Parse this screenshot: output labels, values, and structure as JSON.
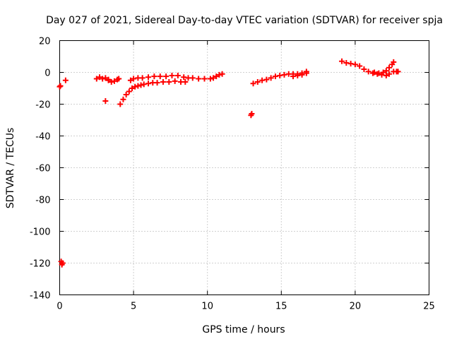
{
  "chart_data": {
    "type": "scatter",
    "title": "Day 027 of 2021, Sidereal Day-to-day VTEC variation (SDTVAR) for receiver spja",
    "xlabel": "GPS time / hours",
    "ylabel": "SDTVAR / TECUs",
    "xlim": [
      0,
      25
    ],
    "ylim": [
      -140,
      20
    ],
    "xticks": [
      "0",
      "5",
      "10",
      "15",
      "20",
      "25"
    ],
    "yticks": [
      "20",
      "0",
      "-20",
      "-40",
      "-60",
      "-80",
      "-100",
      "-120",
      "-140"
    ],
    "grid": true,
    "marker": "plus",
    "color": "#ff0000",
    "series": [
      {
        "points": [
          [
            0.0,
            -9
          ],
          [
            0.05,
            -8.5
          ],
          [
            0.4,
            -5
          ],
          [
            0.1,
            -119
          ],
          [
            0.15,
            -121
          ],
          [
            0.2,
            -120
          ],
          [
            2.5,
            -4
          ],
          [
            2.7,
            -3
          ],
          [
            2.9,
            -4
          ],
          [
            3.1,
            -3.5
          ],
          [
            3.3,
            -4.5
          ],
          [
            3.1,
            -18
          ],
          [
            3.3,
            -5
          ],
          [
            3.5,
            -6
          ],
          [
            3.7,
            -5.5
          ],
          [
            3.9,
            -4.5
          ],
          [
            4.0,
            -4
          ],
          [
            4.1,
            -20
          ],
          [
            4.3,
            -17
          ],
          [
            4.5,
            -14
          ],
          [
            4.7,
            -12
          ],
          [
            4.9,
            -10
          ],
          [
            5.1,
            -9
          ],
          [
            5.3,
            -8.5
          ],
          [
            5.5,
            -8
          ],
          [
            5.7,
            -7.5
          ],
          [
            6.0,
            -7
          ],
          [
            6.3,
            -6.5
          ],
          [
            6.6,
            -6.5
          ],
          [
            7.0,
            -6
          ],
          [
            7.4,
            -6
          ],
          [
            7.8,
            -5.5
          ],
          [
            8.2,
            -6
          ],
          [
            8.5,
            -6
          ],
          [
            4.8,
            -5
          ],
          [
            5.0,
            -4
          ],
          [
            5.3,
            -3.5
          ],
          [
            5.6,
            -3.5
          ],
          [
            6.0,
            -3
          ],
          [
            6.4,
            -2.5
          ],
          [
            6.8,
            -2.5
          ],
          [
            7.2,
            -2.5
          ],
          [
            7.6,
            -2
          ],
          [
            8.0,
            -2
          ],
          [
            8.4,
            -3
          ],
          [
            8.7,
            -3.5
          ],
          [
            9.0,
            -3.5
          ],
          [
            9.4,
            -4
          ],
          [
            9.8,
            -4
          ],
          [
            10.2,
            -4
          ],
          [
            10.4,
            -3.5
          ],
          [
            10.6,
            -2.5
          ],
          [
            10.8,
            -1.5
          ],
          [
            11.0,
            -1
          ],
          [
            12.95,
            -27
          ],
          [
            13.0,
            -26
          ],
          [
            13.1,
            -7
          ],
          [
            13.4,
            -6
          ],
          [
            13.7,
            -5
          ],
          [
            14.0,
            -4.5
          ],
          [
            14.3,
            -3.5
          ],
          [
            14.6,
            -2.5
          ],
          [
            14.9,
            -2
          ],
          [
            15.2,
            -1.5
          ],
          [
            15.5,
            -1
          ],
          [
            15.8,
            -1
          ],
          [
            16.1,
            -1
          ],
          [
            16.4,
            -0.5
          ],
          [
            16.7,
            -0.5
          ],
          [
            15.8,
            -2.5
          ],
          [
            16.1,
            -2
          ],
          [
            16.4,
            -1.5
          ],
          [
            16.7,
            0.5
          ],
          [
            19.1,
            7
          ],
          [
            19.4,
            6
          ],
          [
            19.7,
            5.5
          ],
          [
            20.0,
            5
          ],
          [
            20.3,
            4
          ],
          [
            20.6,
            2
          ],
          [
            20.9,
            0.5
          ],
          [
            21.2,
            -0.5
          ],
          [
            21.5,
            -1
          ],
          [
            21.8,
            -1.5
          ],
          [
            22.1,
            -2
          ],
          [
            22.3,
            -1
          ],
          [
            21.3,
            0
          ],
          [
            21.6,
            -0.5
          ],
          [
            21.9,
            0
          ],
          [
            22.1,
            1
          ],
          [
            22.3,
            3
          ],
          [
            22.5,
            5
          ],
          [
            22.6,
            6.5
          ],
          [
            22.6,
            0.5
          ],
          [
            22.8,
            0.5
          ],
          [
            22.9,
            0.5
          ]
        ]
      }
    ]
  }
}
